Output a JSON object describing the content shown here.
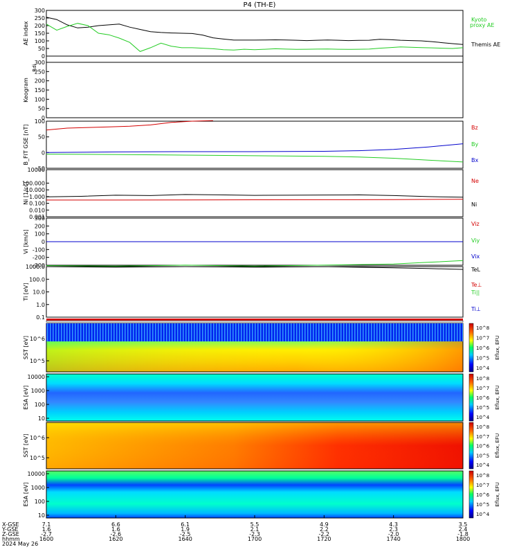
{
  "title": "P4 (TH-E)",
  "colors": {
    "black": "#000000",
    "red": "#d40000",
    "green": "#22cc22",
    "blue": "#0000cc",
    "orange": "#ff7700"
  },
  "chart_data": [
    {
      "type": "line",
      "panel": "ae",
      "ylabel": "AE index",
      "ylim": [
        0,
        300
      ],
      "yticks": [
        "0",
        "50",
        "100",
        "150",
        "200",
        "250",
        "300"
      ],
      "legend_right": [
        "Kyoto",
        "proxy AE",
        "Themis AE"
      ],
      "series": [
        {
          "name": "Themis AE",
          "color": "black",
          "x": [
            0,
            3,
            6,
            9,
            12,
            15,
            18,
            21,
            24,
            27,
            30,
            33,
            36,
            39,
            42,
            45,
            48,
            51,
            54,
            57,
            60,
            63,
            66,
            69,
            72,
            75,
            78,
            81,
            84,
            87,
            90,
            93,
            96,
            99,
            102,
            105,
            108,
            111,
            114,
            117,
            120
          ],
          "y": [
            255,
            240,
            205,
            185,
            190,
            200,
            205,
            210,
            190,
            175,
            160,
            155,
            152,
            150,
            148,
            138,
            120,
            112,
            105,
            105,
            105,
            106,
            107,
            106,
            104,
            102,
            104,
            106,
            104,
            102,
            103,
            104,
            110,
            108,
            104,
            102,
            100,
            95,
            88,
            82,
            76
          ]
        },
        {
          "name": "Kyoto proxy AE",
          "color": "green",
          "x": [
            0,
            3,
            6,
            9,
            12,
            15,
            18,
            21,
            24,
            27,
            30,
            33,
            36,
            39,
            42,
            45,
            48,
            51,
            54,
            57,
            60,
            63,
            66,
            69,
            72,
            75,
            78,
            81,
            84,
            87,
            90,
            93,
            96,
            99,
            102,
            105,
            108,
            111,
            114,
            117,
            120
          ],
          "y": [
            210,
            170,
            195,
            215,
            200,
            150,
            140,
            118,
            90,
            30,
            55,
            85,
            65,
            55,
            55,
            52,
            48,
            42,
            40,
            45,
            42,
            45,
            48,
            46,
            44,
            45,
            46,
            47,
            45,
            44,
            45,
            46,
            52,
            56,
            60,
            58,
            56,
            54,
            52,
            50,
            55
          ]
        }
      ]
    },
    {
      "type": "heatmap",
      "panel": "keogram",
      "ylabel": "Keogram",
      "ylabel_top": "Rdi",
      "ylim": [
        0,
        300
      ],
      "yticks": [
        "0",
        "50",
        "100",
        "150",
        "200",
        "250",
        "300"
      ]
    },
    {
      "type": "line",
      "panel": "bfield",
      "ylabel": "B_FIT GSE [nT]",
      "ylim": [
        -50,
        100
      ],
      "yticks": [
        "-50",
        "0",
        "50",
        "100"
      ],
      "legend_right": [
        "Bz",
        "By",
        "Bx"
      ],
      "series": [
        {
          "name": "Bz",
          "color": "red",
          "x": [
            0,
            6,
            12,
            18,
            24,
            30,
            36,
            42,
            48
          ],
          "y": [
            72,
            78,
            80,
            82,
            84,
            88,
            96,
            100,
            102
          ]
        },
        {
          "name": "By",
          "color": "blue",
          "x": [
            0,
            20,
            40,
            60,
            80,
            90,
            100,
            110,
            120
          ],
          "y": [
            0,
            2,
            3,
            3,
            4,
            6,
            10,
            18,
            28
          ]
        },
        {
          "name": "Bx",
          "color": "green",
          "x": [
            0,
            20,
            40,
            60,
            80,
            90,
            100,
            110,
            120
          ],
          "y": [
            -5,
            -6,
            -8,
            -10,
            -12,
            -14,
            -18,
            -24,
            -30
          ]
        }
      ]
    },
    {
      "type": "line",
      "panel": "density",
      "ylabel": "Ni [1/cc]",
      "ylim_log": [
        0.001,
        10000
      ],
      "yticks": [
        "0.001",
        "0.010",
        "0.100",
        "1.000",
        "10.000",
        "100.000",
        "10000"
      ],
      "legend_right": [
        "Ne",
        "Ni"
      ],
      "series": [
        {
          "name": "Ni",
          "color": "black",
          "x": [
            0,
            10,
            20,
            30,
            40,
            50,
            60,
            70,
            80,
            90,
            100,
            110,
            120
          ],
          "y": [
            0.9,
            1.1,
            1.6,
            1.4,
            2.0,
            1.8,
            1.5,
            1.6,
            1.7,
            1.8,
            1.4,
            1.0,
            0.8
          ]
        },
        {
          "name": "Ne",
          "color": "red",
          "x": [
            0,
            20,
            40,
            60,
            80,
            100,
            120
          ],
          "y": [
            0.3,
            0.3,
            0.32,
            0.33,
            0.34,
            0.36,
            0.4
          ]
        }
      ]
    },
    {
      "type": "line",
      "panel": "velocity",
      "ylabel": "Vi [km/s]",
      "ylim": [
        -300,
        300
      ],
      "yticks": [
        "-300",
        "-200",
        "-100",
        "0",
        "100",
        "200",
        "300"
      ],
      "legend_right": [
        "Viz",
        "Viy",
        "Vix"
      ],
      "series": [
        {
          "name": "Viz",
          "color": "red",
          "x": [
            0,
            120
          ],
          "y": [
            0,
            0
          ]
        },
        {
          "name": "Viy",
          "color": "green",
          "x": [
            0,
            120
          ],
          "y": [
            0,
            0
          ]
        },
        {
          "name": "Vix",
          "color": "blue",
          "x": [
            0,
            120
          ],
          "y": [
            0,
            0
          ]
        }
      ]
    },
    {
      "type": "line",
      "panel": "temperature",
      "ylabel": "Ti [eV]",
      "ylim_log": [
        0.1,
        1000
      ],
      "yticks": [
        "0.1",
        "1.0",
        "10.0",
        "100.0",
        "1000.0"
      ],
      "legend_right": [
        "TeL",
        "Te⊥",
        "Ti||",
        "Ti⊥"
      ],
      "series": [
        {
          "name": "Te",
          "color": "black",
          "x": [
            0,
            20,
            40,
            60,
            80,
            100,
            110,
            120
          ],
          "y": [
            1000,
            900,
            1000,
            900,
            1000,
            800,
            700,
            600
          ]
        },
        {
          "name": "Ti||",
          "color": "green",
          "x": [
            0,
            20,
            40,
            60,
            80,
            100,
            110,
            120
          ],
          "y": [
            1200,
            1100,
            1300,
            1100,
            1300,
            1600,
            2200,
            3000
          ]
        }
      ]
    },
    {
      "type": "heatmap",
      "panel": "sst_ion",
      "ylabel": "SST [eV]",
      "yticks": [
        "10^5",
        "10^6"
      ],
      "colorbar_ticks": [
        "10^8",
        "10^7",
        "10^6",
        "10^5",
        "10^4"
      ],
      "colorbar_label": "Eflux, EFU"
    },
    {
      "type": "heatmap",
      "panel": "esa_ion",
      "ylabel": "ESA [eV]",
      "yticks": [
        "10",
        "100",
        "1000",
        "10000"
      ],
      "colorbar_ticks": [
        "10^8",
        "10^7",
        "10^6",
        "10^5",
        "10^4"
      ],
      "colorbar_label": "Eflux, EFU"
    },
    {
      "type": "heatmap",
      "panel": "sst_elec",
      "ylabel": "SST [eV]",
      "yticks": [
        "10^5",
        "10^6"
      ],
      "colorbar_ticks": [
        "10^8",
        "10^7",
        "10^6",
        "10^5",
        "10^4"
      ],
      "colorbar_label": "Eflux, EFU"
    },
    {
      "type": "heatmap",
      "panel": "esa_elec",
      "ylabel": "ESA [eV]",
      "yticks": [
        "10",
        "100",
        "1000",
        "10000"
      ],
      "colorbar_ticks": [
        "10^8",
        "10^7",
        "10^6",
        "10^5",
        "10^4"
      ],
      "colorbar_label": "Eflux, EFU"
    }
  ],
  "xaxis": {
    "row_labels": [
      "X-GSE",
      "Y-GSE",
      "Z-GSE",
      "hhmm",
      "2024 May 26"
    ],
    "ticks": [
      {
        "x": 0,
        "values": [
          "7.1",
          "1.6",
          "-2.7",
          "1600"
        ]
      },
      {
        "x": 20,
        "values": [
          "6.6",
          "1.6",
          "-2.6",
          "1620"
        ]
      },
      {
        "x": 40,
        "values": [
          "6.1",
          "1.9",
          "-2.5",
          "1640"
        ]
      },
      {
        "x": 60,
        "values": [
          "5.5",
          "2.1",
          "-2.3",
          "1700"
        ]
      },
      {
        "x": 80,
        "values": [
          "4.9",
          "2.2",
          "-2.2",
          "1720"
        ]
      },
      {
        "x": 100,
        "values": [
          "4.3",
          "2.3",
          "-2.0",
          "1740"
        ]
      },
      {
        "x": 120,
        "values": [
          "3.5",
          "2.4",
          "-1.8",
          "1800"
        ]
      }
    ]
  }
}
